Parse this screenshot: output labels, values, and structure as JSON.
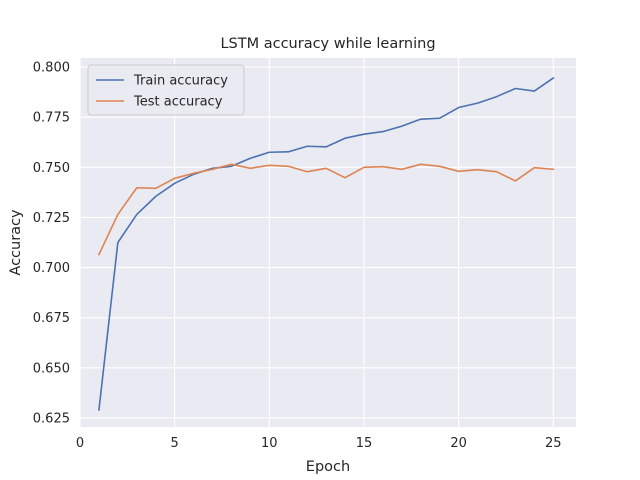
{
  "chart_data": {
    "type": "line",
    "title": "LSTM accuracy while learning",
    "xlabel": "Epoch",
    "ylabel": "Accuracy",
    "xlim": [
      0,
      26.2
    ],
    "ylim": [
      0.6205,
      0.8045
    ],
    "x_ticks": [
      0,
      5,
      10,
      15,
      20,
      25
    ],
    "y_ticks": [
      0.625,
      0.65,
      0.675,
      0.7,
      0.725,
      0.75,
      0.775,
      0.8
    ],
    "x_tick_labels": [
      "0",
      "5",
      "10",
      "15",
      "20",
      "25"
    ],
    "y_tick_labels": [
      "0.625",
      "0.650",
      "0.675",
      "0.700",
      "0.725",
      "0.750",
      "0.775",
      "0.800"
    ],
    "grid": true,
    "legend_position": "top-left",
    "background": "#eaeaf2",
    "x": [
      1,
      2,
      3,
      4,
      5,
      6,
      7,
      8,
      9,
      10,
      11,
      12,
      13,
      14,
      15,
      16,
      17,
      18,
      19,
      20,
      21,
      22,
      23,
      24,
      25
    ],
    "series": [
      {
        "name": "Train accuracy",
        "color": "#4c72b0",
        "values": [
          0.629,
          0.7125,
          0.7265,
          0.7355,
          0.742,
          0.7465,
          0.7495,
          0.7505,
          0.7545,
          0.7575,
          0.7577,
          0.7605,
          0.7602,
          0.7645,
          0.7665,
          0.7678,
          0.7705,
          0.774,
          0.7745,
          0.7798,
          0.782,
          0.7852,
          0.7893,
          0.788,
          0.7945
        ]
      },
      {
        "name": "Test accuracy",
        "color": "#dd8452",
        "values": [
          0.7065,
          0.7265,
          0.7398,
          0.7395,
          0.7445,
          0.747,
          0.749,
          0.7515,
          0.7495,
          0.751,
          0.7505,
          0.7478,
          0.7495,
          0.7448,
          0.75,
          0.7503,
          0.749,
          0.7515,
          0.7505,
          0.748,
          0.7488,
          0.7478,
          0.7432,
          0.7498,
          0.749
        ]
      }
    ]
  }
}
